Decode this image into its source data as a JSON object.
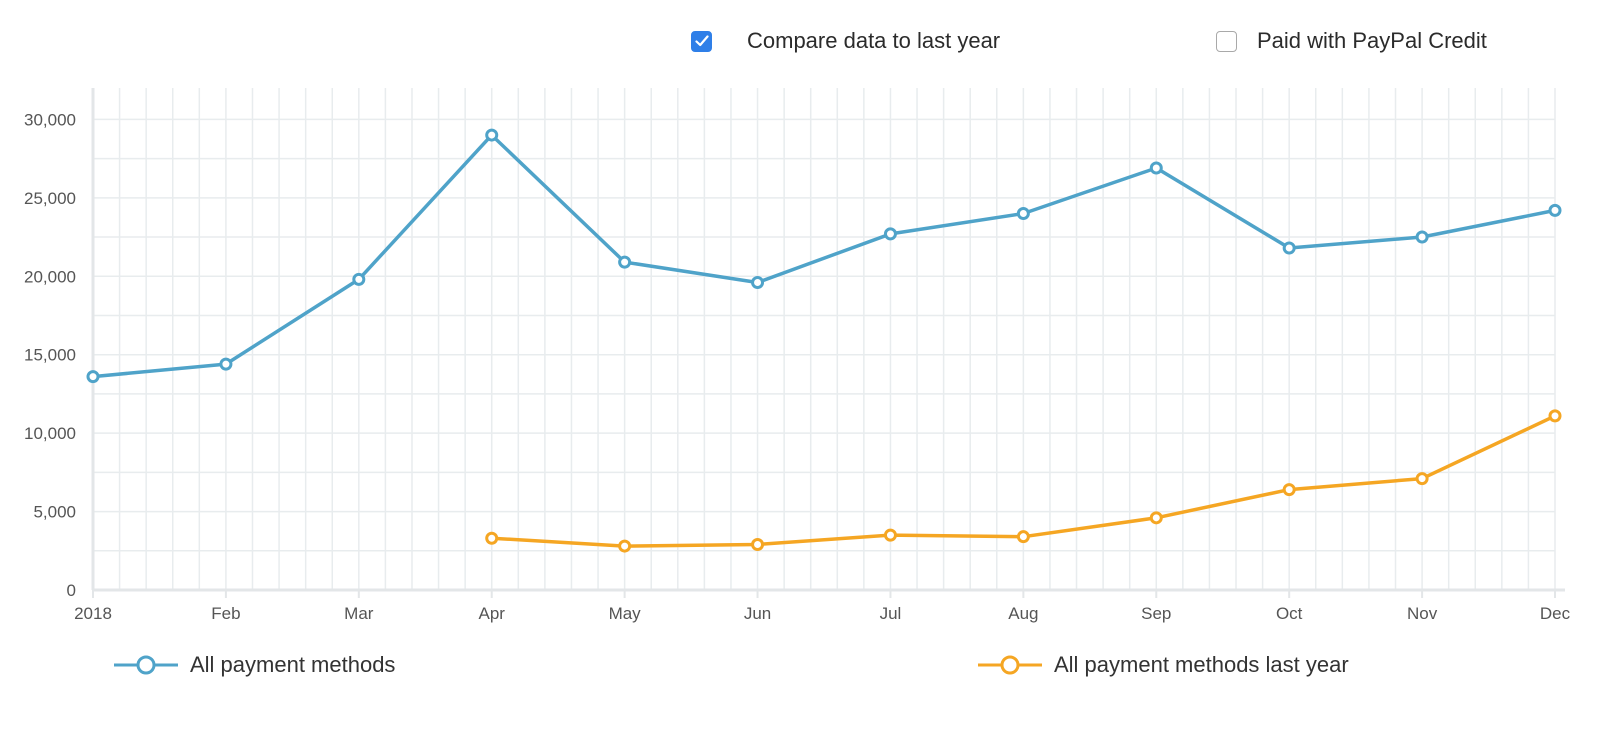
{
  "controls": {
    "compare": {
      "label": "Compare data to last year",
      "checked": true
    },
    "credit": {
      "label": "Paid with PayPal Credit",
      "checked": false
    }
  },
  "colors": {
    "series_current": "#4fa3c9",
    "series_last_year": "#f5a623",
    "checkbox_checked": "#2f7fe8",
    "grid": "#e8ecee",
    "axis": "#e3e6e8",
    "tick_text": "#555555"
  },
  "chart_data": {
    "type": "line",
    "categories": [
      "2018",
      "Feb",
      "Mar",
      "Apr",
      "May",
      "Jun",
      "Jul",
      "Aug",
      "Sep",
      "Oct",
      "Nov",
      "Dec"
    ],
    "series": [
      {
        "name": "All payment methods",
        "values": [
          13600,
          14400,
          19800,
          29000,
          20900,
          19600,
          22700,
          24000,
          26900,
          21800,
          22500,
          24200
        ]
      },
      {
        "name": "All payment methods last year",
        "values": [
          null,
          null,
          null,
          3300,
          2800,
          2900,
          3500,
          3400,
          4600,
          6400,
          7100,
          11100
        ]
      }
    ],
    "y_ticks": [
      "0",
      "5,000",
      "10,000",
      "15,000",
      "20,000",
      "25,000",
      "30,000"
    ],
    "ylim": [
      0,
      32000
    ],
    "grid": true,
    "legend_position": "bottom"
  }
}
